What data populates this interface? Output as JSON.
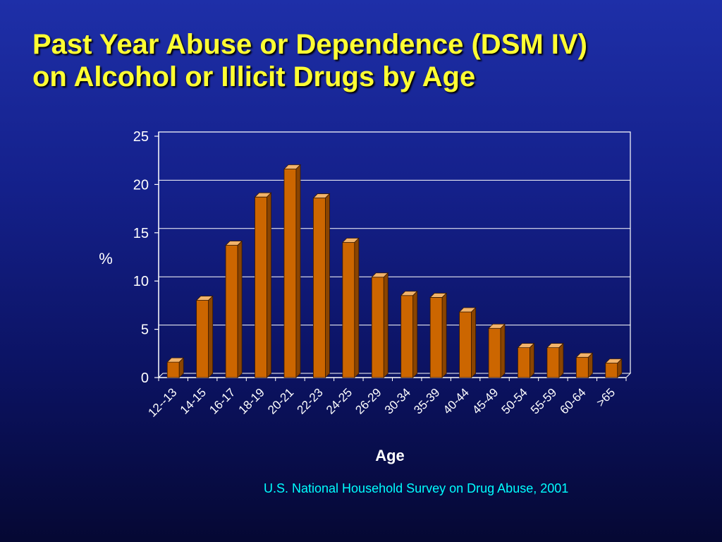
{
  "slide": {
    "title_line1": "Past Year Abuse or Dependence (DSM IV)",
    "title_line2": "on Alcohol or Illicit Drugs by Age",
    "source": "U.S. National Household Survey on Drug Abuse, 2001"
  },
  "colors": {
    "bar_face": "#cc6600",
    "bar_top": "#f2b36b",
    "bar_side": "#8a4400",
    "title": "#ffff33",
    "source": "#00ffff",
    "axis_text": "#ffffff"
  },
  "chart_data": {
    "type": "bar",
    "categories": [
      "12--13",
      "14-15",
      "16-17",
      "18-19",
      "20-21",
      "22-23",
      "24-25",
      "26-29",
      "30-34",
      "35-39",
      "40-44",
      "45-49",
      "50-54",
      "55-59",
      "60-64",
      ">65"
    ],
    "values": [
      1.6,
      8.0,
      13.7,
      18.7,
      21.6,
      18.6,
      14.0,
      10.4,
      8.5,
      8.3,
      6.8,
      5.1,
      3.1,
      3.1,
      2.1,
      1.5
    ],
    "xlabel": "Age",
    "ylabel": "%",
    "ylim": [
      0,
      25
    ],
    "yticks": [
      0,
      5,
      10,
      15,
      20,
      25
    ],
    "grid": true,
    "style": "3d-bar"
  }
}
